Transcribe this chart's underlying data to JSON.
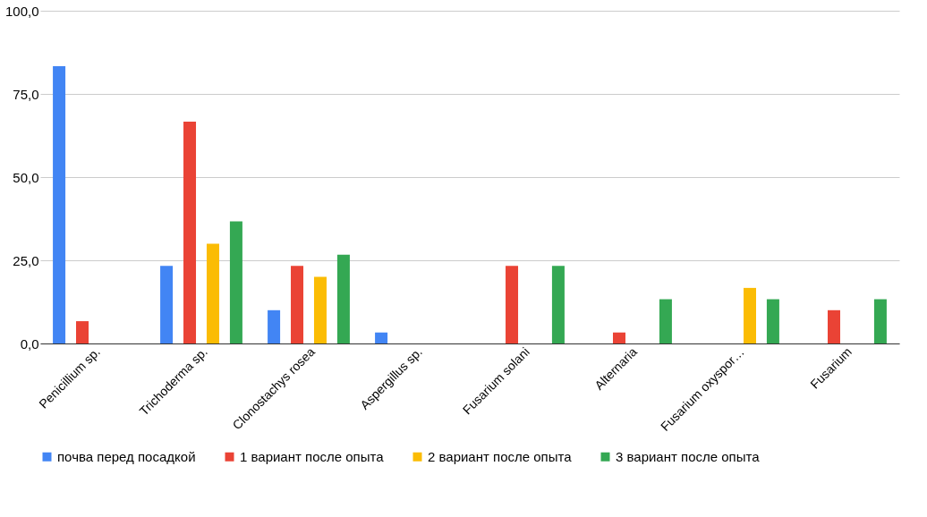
{
  "chart_data": {
    "type": "bar",
    "categories": [
      "Penicillium sp.",
      "Trichoderma sp.",
      "Clonostachys rosea",
      "Aspergillus sp.",
      "Fusarium solani",
      "Alternaria",
      "Fusarium oxyspor…",
      "Fusarium"
    ],
    "series": [
      {
        "name": "почва перед посадкой",
        "color": "#4285f4",
        "values": [
          83.3,
          23.3,
          10.0,
          3.3,
          null,
          null,
          null,
          null
        ]
      },
      {
        "name": "1 вариант после опыта",
        "color": "#ea4335",
        "values": [
          6.7,
          66.7,
          23.3,
          null,
          23.3,
          3.3,
          null,
          10.0
        ]
      },
      {
        "name": "2 вариант после опыта",
        "color": "#fbbc04",
        "values": [
          null,
          30.0,
          20.0,
          null,
          null,
          null,
          16.7,
          null
        ]
      },
      {
        "name": "3 вариант после опыта",
        "color": "#34a853",
        "values": [
          null,
          36.7,
          26.7,
          null,
          23.3,
          13.3,
          13.3,
          13.3
        ]
      }
    ],
    "ylim": [
      0,
      100
    ],
    "yticks": [
      {
        "value": 0,
        "label": "0,0"
      },
      {
        "value": 25,
        "label": "25,0"
      },
      {
        "value": 50,
        "label": "50,0"
      },
      {
        "value": 75,
        "label": "75,0"
      },
      {
        "value": 100,
        "label": "100,0"
      }
    ],
    "grid": "y",
    "legend": "bottom"
  }
}
